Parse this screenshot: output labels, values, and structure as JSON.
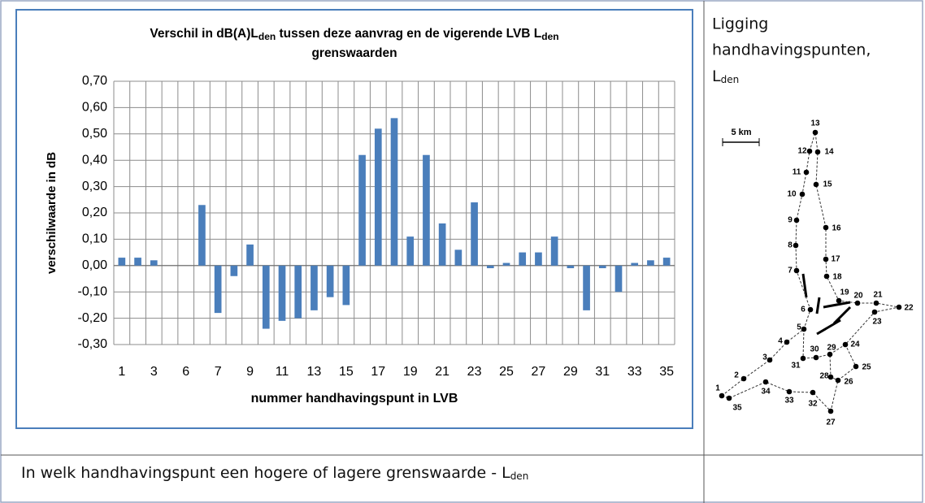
{
  "chart_data": {
    "type": "bar",
    "title_parts": [
      "Verschil in dB(A)L",
      "den",
      " tussen deze aanvrag en de vigerende LVB L",
      "den",
      "grenswaarden"
    ],
    "x_label": "nummer handhavingspunt in LVB",
    "y_label": "verschilwaarde in dB",
    "categories": [
      "1",
      null,
      "3",
      null,
      "6",
      null,
      "7",
      null,
      "9",
      null,
      "11",
      null,
      "13",
      null,
      "15",
      null,
      "17",
      null,
      "19",
      null,
      "21",
      null,
      "23",
      null,
      "25",
      null,
      "27",
      null,
      "29",
      null,
      "31",
      null,
      "33",
      null,
      "35"
    ],
    "values": [
      0.03,
      0.03,
      0.02,
      0,
      0,
      0.23,
      -0.18,
      -0.04,
      0.08,
      -0.24,
      -0.21,
      -0.2,
      -0.17,
      -0.12,
      -0.15,
      0.42,
      0.52,
      0.56,
      0.11,
      0.42,
      0.16,
      0.06,
      0.24,
      -0.01,
      0.01,
      0.05,
      0.05,
      0.11,
      -0.01,
      -0.17,
      -0.01,
      -0.1,
      0.01,
      0.02,
      0.03
    ],
    "color": "#4a7ebb",
    "ylim": [
      -0.3,
      0.7
    ],
    "yticks": [
      {
        "value": -0.3,
        "label": "-0,30"
      },
      {
        "value": -0.2,
        "label": "-0,20"
      },
      {
        "value": -0.1,
        "label": "-0,10"
      },
      {
        "value": 0,
        "label": "0,00"
      },
      {
        "value": 0.1,
        "label": "0,10"
      },
      {
        "value": 0.2,
        "label": "0,20"
      },
      {
        "value": 0.3,
        "label": "0,30"
      },
      {
        "value": 0.4,
        "label": "0,40"
      },
      {
        "value": 0.5,
        "label": "0,50"
      },
      {
        "value": 0.6,
        "label": "0,60"
      },
      {
        "value": 0.7,
        "label": "0,70"
      }
    ],
    "grid": true
  },
  "map": {
    "title_parts": [
      "Ligging",
      "handhavingspunten,",
      "L",
      "den"
    ],
    "scale": "5 km",
    "points": [
      "1",
      "2",
      "3",
      "4",
      "5",
      "6",
      "7",
      "8",
      "9",
      "10",
      "11",
      "12",
      "13",
      "14",
      "15",
      "16",
      "17",
      "18",
      "19",
      "20",
      "21",
      "22",
      "23",
      "24",
      "25",
      "26",
      "27",
      "28",
      "29",
      "30",
      "31",
      "32",
      "33",
      "34",
      "35"
    ]
  },
  "footer": {
    "text_parts": [
      "In welk handhavingspunt een hogere of lagere grenswaarde - L",
      "den"
    ]
  }
}
